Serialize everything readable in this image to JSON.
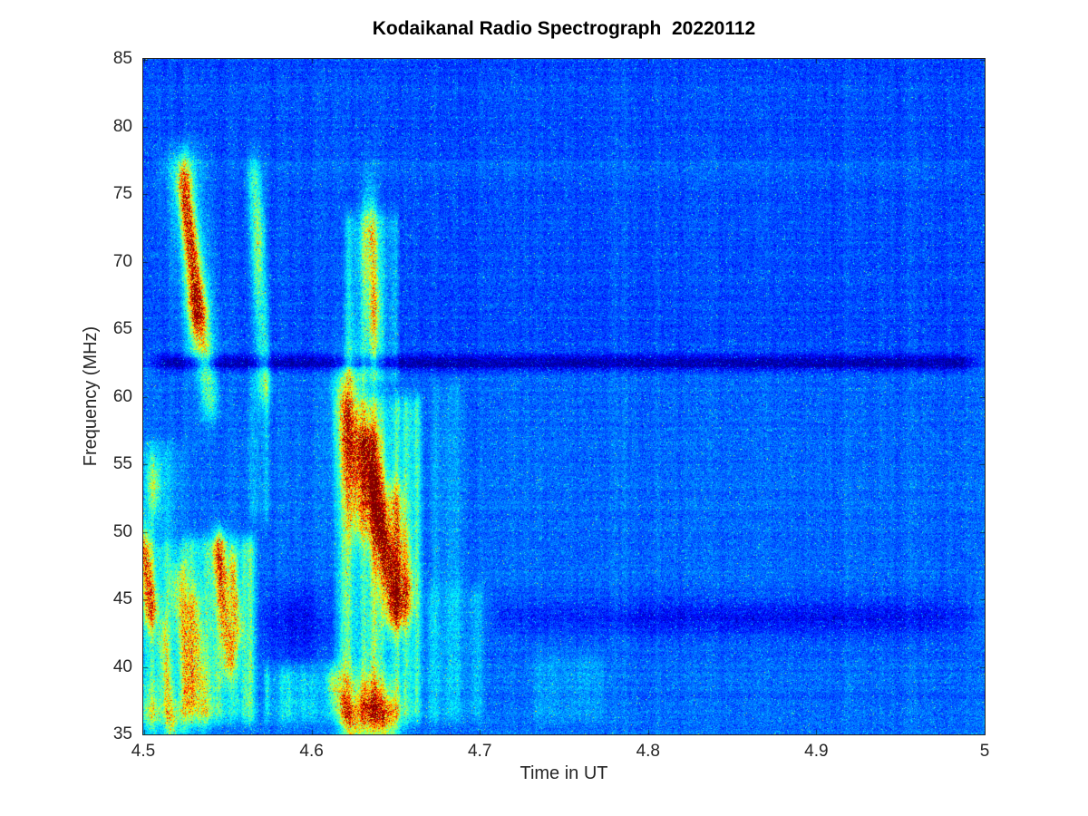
{
  "title": "Kodaikanal Radio Spectrograph  20220112",
  "chart_data": {
    "type": "heatmap",
    "title": "Kodaikanal Radio Spectrograph  20220112",
    "xlabel": "Time in UT",
    "ylabel": "Frequency (MHz)",
    "xlim": [
      4.5,
      5.0
    ],
    "ylim": [
      35,
      85
    ],
    "x_ticks": [
      4.5,
      4.6,
      4.7,
      4.8,
      4.9,
      5
    ],
    "x_tick_labels": [
      "4.5",
      "4.6",
      "4.7",
      "4.8",
      "4.9",
      "5"
    ],
    "y_ticks": [
      35,
      40,
      45,
      50,
      55,
      60,
      65,
      70,
      75,
      80,
      85
    ],
    "y_tick_labels": [
      "35",
      "40",
      "45",
      "50",
      "55",
      "60",
      "65",
      "70",
      "75",
      "80",
      "85"
    ],
    "colormap": "jet",
    "grid": false,
    "legend": "none",
    "background_level": 0.2,
    "noise_seed": 20220112,
    "features": [
      {
        "name": "active-field-left",
        "kind": "wash",
        "t": [
          4.497,
          4.57
        ],
        "f": [
          35,
          50.5
        ],
        "amp": 0.3
      },
      {
        "name": "active-field-left-upper",
        "kind": "wash",
        "t": [
          4.497,
          4.526
        ],
        "f": [
          49,
          57.5
        ],
        "amp": 0.15
      },
      {
        "name": "green-column-4p57",
        "kind": "wash",
        "t": [
          4.56,
          4.578
        ],
        "f": [
          50,
          63
        ],
        "amp": 0.11
      },
      {
        "name": "active-low-mid",
        "kind": "wash",
        "t": [
          4.568,
          4.616
        ],
        "f": [
          35,
          41
        ],
        "amp": 0.17
      },
      {
        "name": "burst-column-lower",
        "kind": "wash",
        "t": [
          4.612,
          4.668
        ],
        "f": [
          35,
          61
        ],
        "amp": 0.3
      },
      {
        "name": "burst-column-upper",
        "kind": "wash",
        "t": [
          4.617,
          4.654
        ],
        "f": [
          60,
          74.5
        ],
        "amp": 0.21
      },
      {
        "name": "post-burst-fade",
        "kind": "wash",
        "t": [
          4.664,
          4.705
        ],
        "f": [
          35,
          47
        ],
        "amp": 0.13
      },
      {
        "name": "post-burst-mid",
        "kind": "wash",
        "t": [
          4.668,
          4.695
        ],
        "f": [
          45,
          62
        ],
        "amp": 0.07
      },
      {
        "name": "faint-patch-4p75",
        "kind": "wash",
        "t": [
          4.728,
          4.778
        ],
        "f": [
          35,
          42
        ],
        "amp": 0.08
      },
      {
        "name": "type3-burst-core",
        "kind": "streak",
        "from": [
          4.524,
          75.5
        ],
        "to": [
          4.5325,
          66.5
        ],
        "sig_t": 0.003,
        "amp": 0.55
      },
      {
        "name": "type3-burst-halo",
        "kind": "streak",
        "from": [
          4.5235,
          77.0
        ],
        "to": [
          4.534,
          64.0
        ],
        "sig_t": 0.0075,
        "amp": 0.2
      },
      {
        "name": "type3-burst-tail",
        "kind": "streak",
        "from": [
          4.531,
          67.0
        ],
        "to": [
          4.539,
          60.0
        ],
        "sig_t": 0.0038,
        "amp": 0.26
      },
      {
        "name": "type3-burst-2",
        "kind": "streak",
        "from": [
          4.566,
          76.0
        ],
        "to": [
          4.5715,
          61.0
        ],
        "sig_t": 0.003,
        "amp": 0.24
      },
      {
        "name": "type3-2-orange-spot",
        "kind": "blob",
        "c": [
          4.5685,
          71.5
        ],
        "sig": [
          0.0022,
          2.5
        ],
        "amp": 0.15
      },
      {
        "name": "left-edge-red-streak",
        "kind": "streak",
        "from": [
          4.5,
          48.5
        ],
        "to": [
          4.504,
          44.5
        ],
        "sig_t": 0.0028,
        "amp": 0.5
      },
      {
        "name": "left-orange-53MHz",
        "kind": "blob",
        "c": [
          4.506,
          53.5
        ],
        "sig": [
          0.003,
          1.5
        ],
        "amp": 0.25
      },
      {
        "name": "orange-streak-1",
        "kind": "streak",
        "from": [
          4.521,
          46.0
        ],
        "to": [
          4.527,
          38.0
        ],
        "sig_t": 0.0035,
        "amp": 0.3
      },
      {
        "name": "orange-streak-2",
        "kind": "streak",
        "from": [
          4.53,
          44.0
        ],
        "to": [
          4.535,
          37.0
        ],
        "sig_t": 0.003,
        "amp": 0.26
      },
      {
        "name": "orange-streak-3",
        "kind": "streak",
        "from": [
          4.512,
          42.0
        ],
        "to": [
          4.516,
          36.0
        ],
        "sig_t": 0.0025,
        "amp": 0.22
      },
      {
        "name": "red-streak-4p545",
        "kind": "streak",
        "from": [
          4.545,
          48.5
        ],
        "to": [
          4.551,
          41.0
        ],
        "sig_t": 0.0028,
        "amp": 0.42
      },
      {
        "name": "red-streak-4p553",
        "kind": "streak",
        "from": [
          4.553,
          47.0
        ],
        "to": [
          4.556,
          43.0
        ],
        "sig_t": 0.002,
        "amp": 0.28
      },
      {
        "name": "main-burst-red-core",
        "kind": "streak",
        "from": [
          4.633,
          56.0
        ],
        "to": [
          4.65,
          44.5
        ],
        "sig_t": 0.005,
        "amp": 0.58
      },
      {
        "name": "main-burst-inner-core",
        "kind": "streak",
        "from": [
          4.637,
          53.0
        ],
        "to": [
          4.649,
          45.5
        ],
        "sig_t": 0.0028,
        "amp": 0.26
      },
      {
        "name": "main-burst-right-edge",
        "kind": "streak",
        "from": [
          4.65,
          52.0
        ],
        "to": [
          4.656,
          46.0
        ],
        "sig_t": 0.0035,
        "amp": 0.3
      },
      {
        "name": "main-burst-left-arm",
        "kind": "streak",
        "from": [
          4.62,
          60.5
        ],
        "to": [
          4.628,
          51.0
        ],
        "sig_t": 0.0045,
        "amp": 0.26
      },
      {
        "name": "burst-top-orange-1",
        "kind": "blob",
        "c": [
          4.634,
          71.5
        ],
        "sig": [
          0.0035,
          2.8
        ],
        "amp": 0.3
      },
      {
        "name": "burst-top-orange-2",
        "kind": "blob",
        "c": [
          4.6365,
          66.0
        ],
        "sig": [
          0.003,
          2.0
        ],
        "amp": 0.25
      },
      {
        "name": "burst-mid-yellow",
        "kind": "blob",
        "c": [
          4.625,
          57.5
        ],
        "sig": [
          0.008,
          4.0
        ],
        "amp": 0.22
      },
      {
        "name": "burst-bottom-red-1",
        "kind": "blob",
        "c": [
          4.634,
          36.8
        ],
        "sig": [
          0.009,
          1.6
        ],
        "amp": 0.5
      },
      {
        "name": "burst-bottom-red-2",
        "kind": "blob",
        "c": [
          4.645,
          36.2
        ],
        "sig": [
          0.005,
          1.2
        ],
        "amp": 0.32
      },
      {
        "name": "bottom-orange-left",
        "kind": "streak",
        "from": [
          4.615,
          38.5
        ],
        "to": [
          4.623,
          35.5
        ],
        "sig_t": 0.004,
        "amp": 0.28
      },
      {
        "name": "left-bottom-orange-1",
        "kind": "blob",
        "c": [
          4.505,
          36.5
        ],
        "sig": [
          0.004,
          1.3
        ],
        "amp": 0.22
      },
      {
        "name": "left-bottom-orange-2",
        "kind": "blob",
        "c": [
          4.52,
          36.0
        ],
        "sig": [
          0.005,
          1.2
        ],
        "amp": 0.2
      },
      {
        "name": "rfi-dark-line-62p5MHz",
        "kind": "hline",
        "f": 62.5,
        "t": [
          4.5,
          5.0
        ],
        "sig_f": 0.42,
        "amp": -0.2
      },
      {
        "name": "dark-oval-4p59",
        "kind": "blob",
        "c": [
          4.591,
          43.3
        ],
        "sig": [
          0.014,
          1.9
        ],
        "amp": -0.13
      },
      {
        "name": "dark-band-43p8MHz",
        "kind": "hline",
        "f": 43.8,
        "t": [
          4.7,
          5.0
        ],
        "sig_f": 1.05,
        "amp": -0.075
      },
      {
        "name": "dark-band-43p8MHz-deep",
        "kind": "hline",
        "f": 43.6,
        "t": [
          4.78,
          4.98
        ],
        "sig_f": 0.9,
        "amp": -0.04
      },
      {
        "name": "faint-bright-line-77MHz",
        "kind": "hline",
        "f": 77.0,
        "t": [
          4.5,
          5.0
        ],
        "sig_f": 0.5,
        "amp": 0.04
      }
    ]
  }
}
